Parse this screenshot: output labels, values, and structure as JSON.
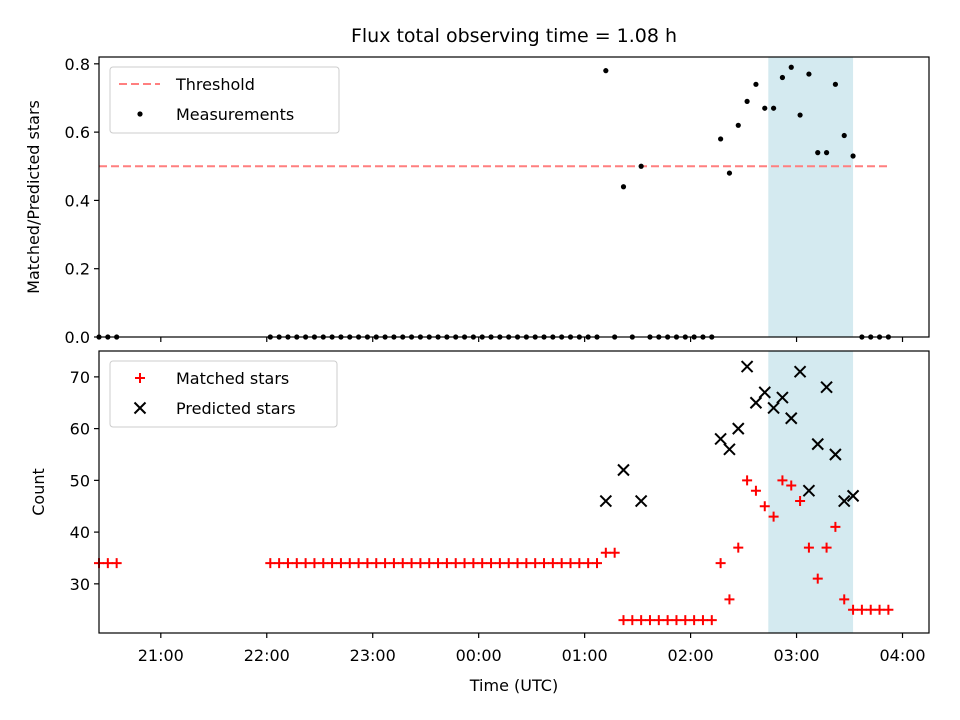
{
  "colors": {
    "threshold": "#ff7f7f",
    "measurement": "#000000",
    "matched": "#ff0000",
    "predicted": "#000000",
    "band": "#d4eaf0"
  },
  "chart_data": [
    {
      "type": "scatter",
      "title": "Flux total observing time = 1.08 h",
      "xlabel": "",
      "ylabel": "Matched/Predicted stars",
      "ylim": [
        0,
        0.82
      ],
      "yticks": [
        "0.0",
        "0.2",
        "0.4",
        "0.6",
        "0.8"
      ],
      "ytick_values": [
        0,
        0.2,
        0.4,
        0.6,
        0.8
      ],
      "xlim": [
        "20:25",
        "04:15"
      ],
      "highlight_band": [
        "02:44",
        "03:32"
      ],
      "legend_position": "upper left",
      "grid": false,
      "series": [
        {
          "name": "Threshold",
          "kind": "dashed-line",
          "x": [
            "20:25",
            "03:53"
          ],
          "y": [
            0.5,
            0.5
          ]
        },
        {
          "name": "Measurements",
          "kind": "dot",
          "points": [
            [
              "20:25",
              0
            ],
            [
              "20:30",
              0
            ],
            [
              "20:35",
              0
            ],
            [
              "22:02",
              0
            ],
            [
              "22:07",
              0
            ],
            [
              "22:12",
              0
            ],
            [
              "22:17",
              0
            ],
            [
              "22:22",
              0
            ],
            [
              "22:27",
              0
            ],
            [
              "22:32",
              0
            ],
            [
              "22:37",
              0
            ],
            [
              "22:42",
              0
            ],
            [
              "22:47",
              0
            ],
            [
              "22:52",
              0
            ],
            [
              "22:57",
              0
            ],
            [
              "23:02",
              0
            ],
            [
              "23:07",
              0
            ],
            [
              "23:12",
              0
            ],
            [
              "23:17",
              0
            ],
            [
              "23:22",
              0
            ],
            [
              "23:27",
              0
            ],
            [
              "23:32",
              0
            ],
            [
              "23:37",
              0
            ],
            [
              "23:42",
              0
            ],
            [
              "23:47",
              0
            ],
            [
              "23:52",
              0
            ],
            [
              "23:57",
              0
            ],
            [
              "00:02",
              0
            ],
            [
              "00:07",
              0
            ],
            [
              "00:12",
              0
            ],
            [
              "00:17",
              0
            ],
            [
              "00:22",
              0
            ],
            [
              "00:27",
              0
            ],
            [
              "00:32",
              0
            ],
            [
              "00:37",
              0
            ],
            [
              "00:42",
              0
            ],
            [
              "00:47",
              0
            ],
            [
              "00:52",
              0
            ],
            [
              "00:57",
              0
            ],
            [
              "01:02",
              0
            ],
            [
              "01:07",
              0
            ],
            [
              "01:12",
              0.78
            ],
            [
              "01:17",
              0
            ],
            [
              "01:22",
              0.44
            ],
            [
              "01:27",
              0
            ],
            [
              "01:32",
              0.5
            ],
            [
              "01:37",
              0
            ],
            [
              "01:42",
              0
            ],
            [
              "01:47",
              0
            ],
            [
              "01:52",
              0
            ],
            [
              "01:57",
              0
            ],
            [
              "02:02",
              0
            ],
            [
              "02:07",
              0
            ],
            [
              "02:12",
              0
            ],
            [
              "02:17",
              0.58
            ],
            [
              "02:22",
              0.48
            ],
            [
              "02:27",
              0.62
            ],
            [
              "02:32",
              0.69
            ],
            [
              "02:37",
              0.74
            ],
            [
              "02:42",
              0.67
            ],
            [
              "02:47",
              0.67
            ],
            [
              "02:52",
              0.76
            ],
            [
              "02:57",
              0.79
            ],
            [
              "03:02",
              0.65
            ],
            [
              "03:07",
              0.77
            ],
            [
              "03:12",
              0.54
            ],
            [
              "03:17",
              0.54
            ],
            [
              "03:22",
              0.74
            ],
            [
              "03:27",
              0.59
            ],
            [
              "03:32",
              0.53
            ],
            [
              "03:37",
              0
            ],
            [
              "03:42",
              0
            ],
            [
              "03:47",
              0
            ],
            [
              "03:52",
              0
            ]
          ]
        }
      ]
    },
    {
      "type": "scatter",
      "title": "",
      "xlabel": "Time (UTC)",
      "ylabel": "Count",
      "ylim": [
        20.5,
        75
      ],
      "yticks": [
        "30",
        "40",
        "50",
        "60",
        "70"
      ],
      "ytick_values": [
        30,
        40,
        50,
        60,
        70
      ],
      "xlim": [
        "20:25",
        "04:15"
      ],
      "xticks": [
        "21:00",
        "22:00",
        "23:00",
        "00:00",
        "01:00",
        "02:00",
        "03:00",
        "04:00"
      ],
      "highlight_band": [
        "02:44",
        "03:32"
      ],
      "legend_position": "upper left",
      "grid": false,
      "series": [
        {
          "name": "Matched stars",
          "kind": "plus",
          "points": [
            [
              "20:25",
              34
            ],
            [
              "20:30",
              34
            ],
            [
              "20:35",
              34
            ],
            [
              "22:02",
              34
            ],
            [
              "22:07",
              34
            ],
            [
              "22:12",
              34
            ],
            [
              "22:17",
              34
            ],
            [
              "22:22",
              34
            ],
            [
              "22:27",
              34
            ],
            [
              "22:32",
              34
            ],
            [
              "22:37",
              34
            ],
            [
              "22:42",
              34
            ],
            [
              "22:47",
              34
            ],
            [
              "22:52",
              34
            ],
            [
              "22:57",
              34
            ],
            [
              "23:02",
              34
            ],
            [
              "23:07",
              34
            ],
            [
              "23:12",
              34
            ],
            [
              "23:17",
              34
            ],
            [
              "23:22",
              34
            ],
            [
              "23:27",
              34
            ],
            [
              "23:32",
              34
            ],
            [
              "23:37",
              34
            ],
            [
              "23:42",
              34
            ],
            [
              "23:47",
              34
            ],
            [
              "23:52",
              34
            ],
            [
              "23:57",
              34
            ],
            [
              "00:02",
              34
            ],
            [
              "00:07",
              34
            ],
            [
              "00:12",
              34
            ],
            [
              "00:17",
              34
            ],
            [
              "00:22",
              34
            ],
            [
              "00:27",
              34
            ],
            [
              "00:32",
              34
            ],
            [
              "00:37",
              34
            ],
            [
              "00:42",
              34
            ],
            [
              "00:47",
              34
            ],
            [
              "00:52",
              34
            ],
            [
              "00:57",
              34
            ],
            [
              "01:02",
              34
            ],
            [
              "01:07",
              34
            ],
            [
              "01:12",
              36
            ],
            [
              "01:17",
              36
            ],
            [
              "01:22",
              23
            ],
            [
              "01:27",
              23
            ],
            [
              "01:32",
              23
            ],
            [
              "01:37",
              23
            ],
            [
              "01:42",
              23
            ],
            [
              "01:47",
              23
            ],
            [
              "01:52",
              23
            ],
            [
              "01:57",
              23
            ],
            [
              "02:02",
              23
            ],
            [
              "02:07",
              23
            ],
            [
              "02:12",
              23
            ],
            [
              "02:17",
              34
            ],
            [
              "02:22",
              27
            ],
            [
              "02:27",
              37
            ],
            [
              "02:32",
              50
            ],
            [
              "02:37",
              48
            ],
            [
              "02:42",
              45
            ],
            [
              "02:47",
              43
            ],
            [
              "02:52",
              50
            ],
            [
              "02:57",
              49
            ],
            [
              "03:02",
              46
            ],
            [
              "03:07",
              37
            ],
            [
              "03:12",
              31
            ],
            [
              "03:17",
              37
            ],
            [
              "03:22",
              41
            ],
            [
              "03:27",
              27
            ],
            [
              "03:32",
              25
            ],
            [
              "03:37",
              25
            ],
            [
              "03:42",
              25
            ],
            [
              "03:47",
              25
            ],
            [
              "03:52",
              25
            ]
          ]
        },
        {
          "name": "Predicted stars",
          "kind": "x",
          "points": [
            [
              "01:12",
              46
            ],
            [
              "01:22",
              52
            ],
            [
              "01:32",
              46
            ],
            [
              "02:17",
              58
            ],
            [
              "02:22",
              56
            ],
            [
              "02:27",
              60
            ],
            [
              "02:32",
              72
            ],
            [
              "02:37",
              65
            ],
            [
              "02:42",
              67
            ],
            [
              "02:47",
              64
            ],
            [
              "02:52",
              66
            ],
            [
              "02:57",
              62
            ],
            [
              "03:02",
              71
            ],
            [
              "03:07",
              48
            ],
            [
              "03:12",
              57
            ],
            [
              "03:17",
              68
            ],
            [
              "03:22",
              55
            ],
            [
              "03:27",
              46
            ],
            [
              "03:32",
              47
            ]
          ]
        }
      ]
    }
  ]
}
